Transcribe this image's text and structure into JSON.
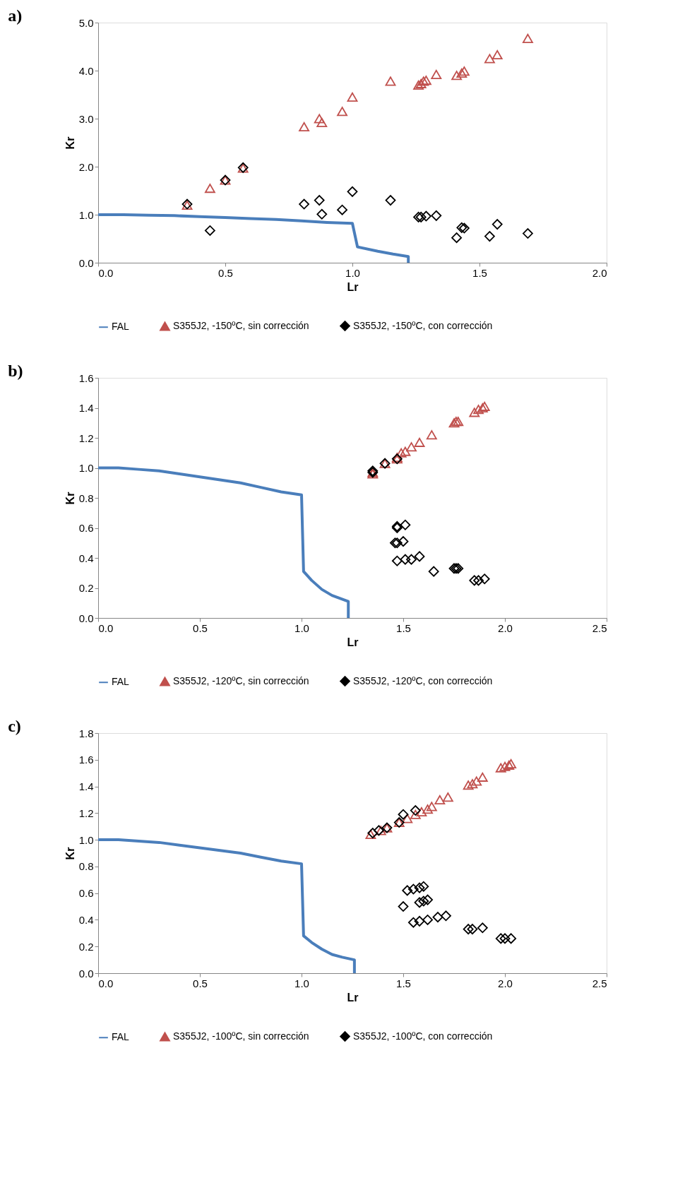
{
  "chart_data": [
    {
      "type": "scatter",
      "title": "a)",
      "xlabel": "Lr",
      "ylabel": "Kr",
      "legend": "bottom",
      "grid": false,
      "xlim": [
        0,
        2
      ],
      "xticks": [
        {
          "value": 0,
          "label": "0.0"
        },
        {
          "value": 0.5,
          "label": "0.5"
        },
        {
          "value": 1,
          "label": "1.0"
        },
        {
          "value": 1.5,
          "label": "1.5"
        },
        {
          "value": 2,
          "label": "2.0"
        }
      ],
      "ylim": [
        0,
        5
      ],
      "yticks": [
        {
          "value": 0,
          "label": "0.0"
        },
        {
          "value": 1,
          "label": "1.0"
        },
        {
          "value": 2,
          "label": "2.0"
        },
        {
          "value": 3,
          "label": "3.0"
        },
        {
          "value": 4,
          "label": "4.0"
        },
        {
          "value": 5,
          "label": "5.0"
        }
      ],
      "series": [
        {
          "name": "FAL",
          "type": "line",
          "marker": "none",
          "color": "#4a7ebb",
          "x": [
            0,
            0.1,
            0.2,
            0.3,
            0.4,
            0.5,
            0.6,
            0.7,
            0.8,
            0.9,
            1.0,
            1.02,
            1.1,
            1.16,
            1.22,
            1.22
          ],
          "values": [
            1.0,
            1.0,
            0.99,
            0.98,
            0.96,
            0.94,
            0.92,
            0.9,
            0.87,
            0.84,
            0.82,
            0.33,
            0.24,
            0.18,
            0.13,
            0.0
          ]
        },
        {
          "name": "S355J2, -150ºC, sin corrección",
          "marker": "triangle",
          "color": "#c0504d",
          "x": [
            0.35,
            0.44,
            0.5,
            0.57,
            0.81,
            0.87,
            0.88,
            0.96,
            1.0,
            1.15,
            1.26,
            1.27,
            1.28,
            1.29,
            1.33,
            1.41,
            1.43,
            1.44,
            1.54,
            1.57,
            1.69
          ],
          "values": [
            1.2,
            1.55,
            1.72,
            1.97,
            2.83,
            3.0,
            2.92,
            3.15,
            3.45,
            3.78,
            3.7,
            3.73,
            3.78,
            3.8,
            3.92,
            3.9,
            3.95,
            3.99,
            4.25,
            4.33,
            4.67
          ]
        },
        {
          "name": "S355J2, -150ºC, con corrección",
          "marker": "diamond",
          "color": "#000000",
          "x": [
            0.35,
            0.44,
            0.5,
            0.57,
            0.81,
            0.87,
            0.88,
            0.96,
            1.0,
            1.15,
            1.26,
            1.27,
            1.29,
            1.33,
            1.41,
            1.43,
            1.44,
            1.54,
            1.57,
            1.69
          ],
          "values": [
            1.22,
            0.67,
            1.72,
            1.98,
            1.22,
            1.3,
            1.01,
            1.1,
            1.48,
            1.3,
            0.95,
            0.95,
            0.97,
            0.98,
            0.52,
            0.73,
            0.72,
            0.55,
            0.8,
            0.61
          ]
        }
      ]
    },
    {
      "type": "scatter",
      "title": "b)",
      "xlabel": "Lr",
      "ylabel": "Kr",
      "legend": "bottom",
      "grid": false,
      "xlim": [
        0,
        2.5
      ],
      "xticks": [
        {
          "value": 0,
          "label": "0.0"
        },
        {
          "value": 0.5,
          "label": "0.5"
        },
        {
          "value": 1,
          "label": "1.0"
        },
        {
          "value": 1.5,
          "label": "1.5"
        },
        {
          "value": 2,
          "label": "2.0"
        },
        {
          "value": 2.5,
          "label": "2.5"
        }
      ],
      "ylim": [
        0,
        1.6
      ],
      "yticks": [
        {
          "value": 0,
          "label": "0.0"
        },
        {
          "value": 0.2,
          "label": "0.2"
        },
        {
          "value": 0.4,
          "label": "0.4"
        },
        {
          "value": 0.6,
          "label": "0.6"
        },
        {
          "value": 0.8,
          "label": "0.8"
        },
        {
          "value": 1,
          "label": "1.0"
        },
        {
          "value": 1.2,
          "label": "1.2"
        },
        {
          "value": 1.4,
          "label": "1.4"
        },
        {
          "value": 1.6,
          "label": "1.6"
        }
      ],
      "series": [
        {
          "name": "FAL",
          "type": "line",
          "marker": "none",
          "color": "#4a7ebb",
          "x": [
            0,
            0.1,
            0.2,
            0.3,
            0.4,
            0.5,
            0.6,
            0.7,
            0.8,
            0.9,
            1.0,
            1.01,
            1.05,
            1.1,
            1.15,
            1.23,
            1.23
          ],
          "values": [
            1.0,
            1.0,
            0.99,
            0.98,
            0.96,
            0.94,
            0.92,
            0.9,
            0.87,
            0.84,
            0.82,
            0.31,
            0.25,
            0.19,
            0.15,
            0.11,
            0.0
          ]
        },
        {
          "name": "S355J2, -120ºC, sin corrección",
          "marker": "triangle",
          "color": "#c0504d",
          "x": [
            1.35,
            1.35,
            1.41,
            1.47,
            1.47,
            1.49,
            1.51,
            1.54,
            1.58,
            1.64,
            1.75,
            1.76,
            1.77,
            1.85,
            1.87,
            1.89,
            1.9
          ],
          "values": [
            0.96,
            0.97,
            1.03,
            1.06,
            1.07,
            1.1,
            1.11,
            1.14,
            1.17,
            1.22,
            1.3,
            1.31,
            1.31,
            1.37,
            1.39,
            1.4,
            1.41
          ]
        },
        {
          "name": "S355J2, -120ºC, con corrección",
          "marker": "diamond",
          "color": "#000000",
          "x": [
            1.35,
            1.35,
            1.41,
            1.47,
            1.47,
            1.47,
            1.51,
            1.46,
            1.47,
            1.5,
            1.47,
            1.51,
            1.54,
            1.58,
            1.65,
            1.75,
            1.76,
            1.77,
            1.85,
            1.87,
            1.9
          ],
          "values": [
            0.97,
            0.98,
            1.03,
            1.06,
            0.6,
            0.61,
            0.62,
            0.5,
            0.5,
            0.51,
            0.38,
            0.39,
            0.39,
            0.41,
            0.31,
            0.33,
            0.33,
            0.33,
            0.25,
            0.25,
            0.26
          ]
        }
      ]
    },
    {
      "type": "scatter",
      "title": "c)",
      "xlabel": "Lr",
      "ylabel": "Kr",
      "legend": "bottom",
      "grid": false,
      "xlim": [
        0,
        2.5
      ],
      "xticks": [
        {
          "value": 0,
          "label": "0.0"
        },
        {
          "value": 0.5,
          "label": "0.5"
        },
        {
          "value": 1,
          "label": "1.0"
        },
        {
          "value": 1.5,
          "label": "1.5"
        },
        {
          "value": 2,
          "label": "2.0"
        },
        {
          "value": 2.5,
          "label": "2.5"
        }
      ],
      "ylim": [
        0,
        1.8
      ],
      "yticks": [
        {
          "value": 0,
          "label": "0.0"
        },
        {
          "value": 0.2,
          "label": "0.2"
        },
        {
          "value": 0.4,
          "label": "0.4"
        },
        {
          "value": 0.6,
          "label": "0.6"
        },
        {
          "value": 0.8,
          "label": "0.8"
        },
        {
          "value": 1,
          "label": "1.0"
        },
        {
          "value": 1.2,
          "label": "1.2"
        },
        {
          "value": 1.4,
          "label": "1.4"
        },
        {
          "value": 1.6,
          "label": "1.6"
        },
        {
          "value": 1.8,
          "label": "1.8"
        }
      ],
      "series": [
        {
          "name": "FAL",
          "type": "line",
          "marker": "none",
          "color": "#4a7ebb",
          "x": [
            0,
            0.1,
            0.2,
            0.3,
            0.4,
            0.5,
            0.6,
            0.7,
            0.8,
            0.9,
            1.0,
            1.01,
            1.05,
            1.1,
            1.15,
            1.2,
            1.26,
            1.26
          ],
          "values": [
            1.0,
            1.0,
            0.99,
            0.98,
            0.96,
            0.94,
            0.92,
            0.9,
            0.87,
            0.84,
            0.82,
            0.28,
            0.23,
            0.18,
            0.14,
            0.12,
            0.1,
            0.0
          ]
        },
        {
          "name": "S355J2, -100ºC, sin corrección",
          "marker": "triangle",
          "color": "#c0504d",
          "x": [
            1.34,
            1.39,
            1.42,
            1.48,
            1.52,
            1.56,
            1.59,
            1.62,
            1.64,
            1.68,
            1.72,
            1.82,
            1.84,
            1.86,
            1.89,
            1.98,
            2.0,
            2.02,
            2.03
          ],
          "values": [
            1.04,
            1.07,
            1.09,
            1.13,
            1.16,
            1.19,
            1.21,
            1.23,
            1.25,
            1.3,
            1.32,
            1.41,
            1.42,
            1.44,
            1.47,
            1.54,
            1.55,
            1.56,
            1.57
          ]
        },
        {
          "name": "S355J2, -100ºC, con corrección",
          "marker": "diamond",
          "color": "#000000",
          "x": [
            1.35,
            1.38,
            1.42,
            1.48,
            1.5,
            1.56,
            1.52,
            1.55,
            1.58,
            1.6,
            1.5,
            1.58,
            1.6,
            1.62,
            1.55,
            1.58,
            1.62,
            1.67,
            1.71,
            1.82,
            1.84,
            1.89,
            1.98,
            2.0,
            2.03
          ],
          "values": [
            1.05,
            1.07,
            1.09,
            1.13,
            1.19,
            1.22,
            0.62,
            0.63,
            0.64,
            0.65,
            0.5,
            0.53,
            0.54,
            0.55,
            0.38,
            0.39,
            0.4,
            0.42,
            0.43,
            0.33,
            0.33,
            0.34,
            0.26,
            0.26,
            0.26
          ]
        }
      ]
    }
  ]
}
